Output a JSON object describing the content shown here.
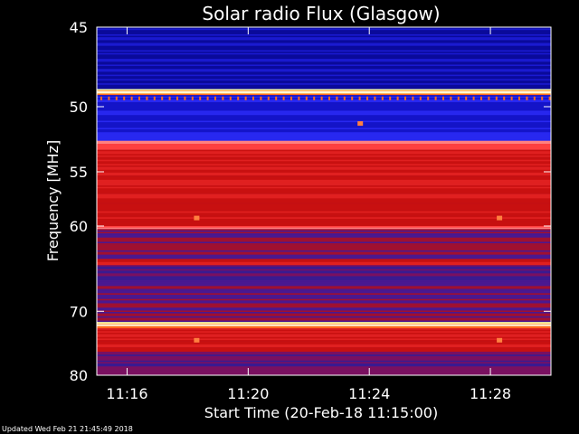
{
  "chart_data": {
    "type": "heatmap",
    "title": "Solar radio Flux (Glasgow)",
    "xlabel": "Start Time (20-Feb-18 11:15:00)",
    "ylabel": "Frequency [MHz]",
    "x_range": [
      "11:15:00",
      "11:30:00"
    ],
    "x_ticks": [
      {
        "label": "11:16",
        "minute": 1
      },
      {
        "label": "11:20",
        "minute": 5
      },
      {
        "label": "11:24",
        "minute": 9
      },
      {
        "label": "11:28",
        "minute": 13
      }
    ],
    "y_axis_scale": "reciprocal",
    "y_range_mhz": [
      45,
      80
    ],
    "y_ticks": [
      45,
      50,
      55,
      60,
      70,
      80
    ],
    "grid": false,
    "colors": {
      "background": "#000000",
      "low": "#1010b0",
      "mid": "#c81010",
      "high": "#ffff80"
    },
    "bands": [
      {
        "from": 45,
        "to": 46,
        "level": "very-low"
      },
      {
        "from": 46,
        "to": 48.8,
        "level": "very-low"
      },
      {
        "from": 48.8,
        "to": 49.2,
        "level": "high"
      },
      {
        "from": 49.2,
        "to": 52.5,
        "level": "low"
      },
      {
        "from": 52.5,
        "to": 53.2,
        "level": "mid-bright"
      },
      {
        "from": 53.2,
        "to": 58,
        "level": "mid"
      },
      {
        "from": 58,
        "to": 60,
        "level": "mid"
      },
      {
        "from": 60,
        "to": 60.3,
        "level": "mid-bright"
      },
      {
        "from": 60.3,
        "to": 63.5,
        "level": "mixed"
      },
      {
        "from": 63.5,
        "to": 64.2,
        "level": "mid"
      },
      {
        "from": 64.2,
        "to": 66,
        "level": "mid-low"
      },
      {
        "from": 66,
        "to": 71.5,
        "level": "mixed"
      },
      {
        "from": 71.5,
        "to": 72.4,
        "level": "high"
      },
      {
        "from": 72.4,
        "to": 76,
        "level": "mid"
      },
      {
        "from": 76,
        "to": 80,
        "level": "mid-low"
      }
    ],
    "spots": [
      {
        "minute": 3.3,
        "mhz": 59.2
      },
      {
        "minute": 13.3,
        "mhz": 59.2
      },
      {
        "minute": 3.3,
        "mhz": 74.2
      },
      {
        "minute": 13.3,
        "mhz": 74.2
      },
      {
        "minute": 8.7,
        "mhz": 51.2
      }
    ]
  },
  "footer": {
    "updated": "Updated Wed Feb 21 21:45:49 2018"
  }
}
